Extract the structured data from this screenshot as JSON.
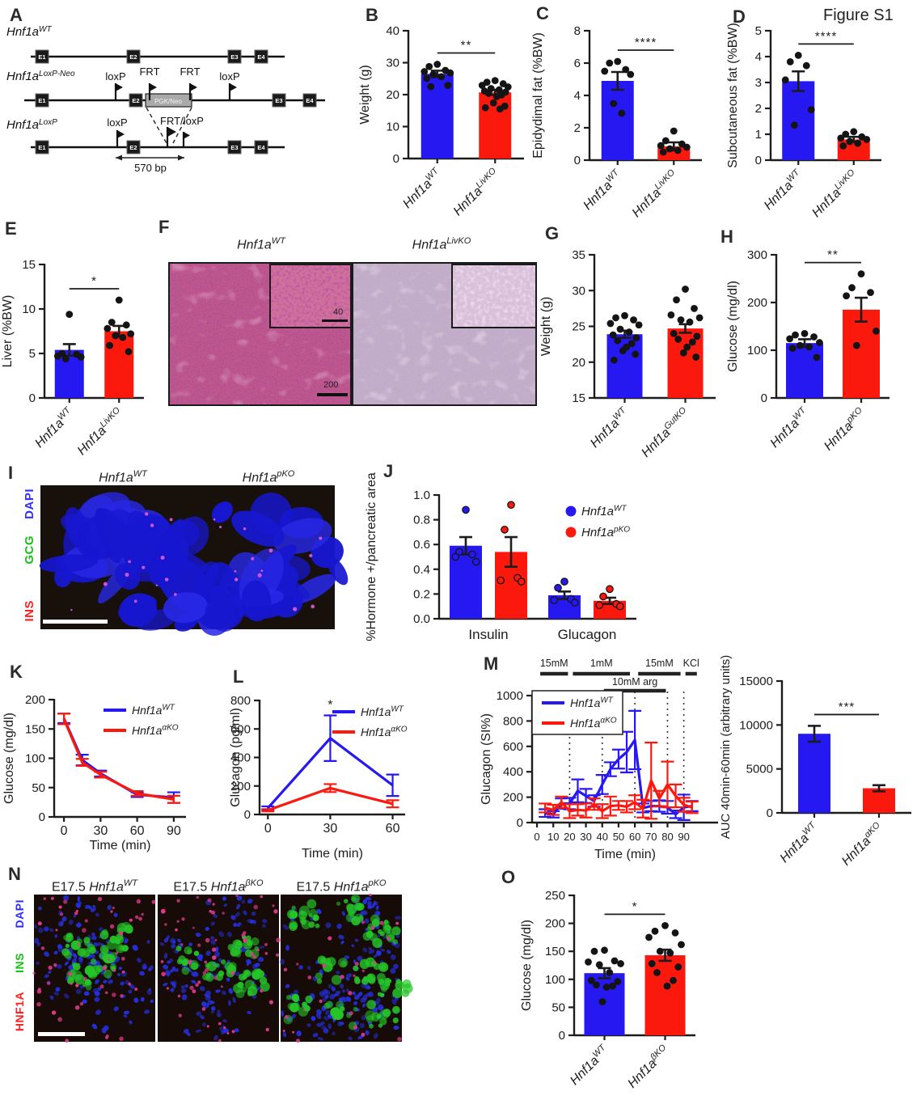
{
  "figure_label": "Figure S1",
  "colors": {
    "wt_blue": "#2618f0",
    "ko_red": "#fb190e",
    "axis": "#1c1c1c",
    "dapi_blue": "#2f2fff",
    "gcg_green": "#12c412",
    "ins_red": "#ff2020",
    "hnf1a_red": "#ff2020",
    "ins_green": "#12c412"
  },
  "panel_letters": {
    "A": "A",
    "B": "B",
    "C": "C",
    "D": "D",
    "E": "E",
    "F": "F",
    "G": "G",
    "H": "H",
    "I": "I",
    "J": "J",
    "K": "K",
    "L": "L",
    "M": "M",
    "N": "N",
    "O": "O"
  },
  "panelA": {
    "alleles": [
      {
        "base": "Hnf1a",
        "sup": "WT"
      },
      {
        "base": "Hnf1a",
        "sup": "LoxP-Neo"
      },
      {
        "base": "Hnf1a",
        "sup": "LoxP"
      }
    ],
    "exons": [
      "E1",
      "E2",
      "E3",
      "E4"
    ],
    "loxp": "loxP",
    "frt": "FRT",
    "cassette": "PGK/Neo",
    "frt_loxp": "FRT/loxP",
    "fragment": "570 bp"
  },
  "panelF": {
    "titles": [
      {
        "base": "Hnf1a",
        "sup": "WT"
      },
      {
        "base": "Hnf1a",
        "sup": "LivKO"
      }
    ],
    "scalebar_main": "200",
    "scalebar_inset": "40"
  },
  "panelI": {
    "titles": [
      {
        "base": "Hnf1a",
        "sup": "WT"
      },
      {
        "base": "Hnf1a",
        "sup": "pKO"
      }
    ],
    "channels": [
      {
        "name": "DAPI",
        "color": "#2f2fff"
      },
      {
        "name": "GCG",
        "color": "#12c412"
      },
      {
        "name": "INS",
        "color": "#ff2020"
      }
    ]
  },
  "panelN": {
    "titles": [
      {
        "prefix": "E17.5 ",
        "base": "Hnf1a",
        "sup": "WT"
      },
      {
        "prefix": "E17.5 ",
        "base": "Hnf1a",
        "sup": "βKO"
      },
      {
        "prefix": "E17.5 ",
        "base": "Hnf1a",
        "sup": "pKO"
      }
    ],
    "channels": [
      {
        "name": "DAPI",
        "color": "#2f2fff"
      },
      {
        "name": "INS",
        "color": "#12c412"
      },
      {
        "name": "HNF1A",
        "color": "#ff2020"
      }
    ]
  },
  "chart_data": [
    {
      "id": "B",
      "type": "bar",
      "ylabel": "Weight (g)",
      "ylim": [
        0,
        40
      ],
      "yticks": [
        0,
        10,
        20,
        30,
        40
      ],
      "categories": [
        {
          "base": "Hnf1a",
          "sup": "WT"
        },
        {
          "base": "Hnf1a",
          "sup": "LivKO"
        }
      ],
      "series": [
        {
          "color": "wt_blue",
          "mean": 26.5,
          "sem": 1.0,
          "points": [
            29.5,
            28.8,
            27.6,
            27.2,
            26.8,
            26.3,
            25.6,
            25.1,
            22.9,
            22.5
          ]
        },
        {
          "color": "ko_red",
          "mean": 20.7,
          "sem": 0.8,
          "points": [
            24.4,
            23.9,
            23.4,
            22.9,
            22.4,
            21.9,
            21.5,
            21.1,
            20.8,
            20.4,
            19.9,
            19.4,
            17.4,
            16.4,
            15.9,
            15.5
          ]
        }
      ],
      "sig": "**"
    },
    {
      "id": "C",
      "type": "bar",
      "ylabel": "Epidydimal fat (%BW)",
      "ylim": [
        0,
        8
      ],
      "yticks": [
        0,
        2,
        4,
        6,
        8
      ],
      "categories": [
        {
          "base": "Hnf1a",
          "sup": "WT"
        },
        {
          "base": "Hnf1a",
          "sup": "LivKO"
        }
      ],
      "series": [
        {
          "color": "wt_blue",
          "mean": 4.9,
          "sem": 0.55,
          "points": [
            6.1,
            6.0,
            5.6,
            5.5,
            5.3,
            3.5,
            2.9
          ]
        },
        {
          "color": "ko_red",
          "mean": 0.85,
          "sem": 0.25,
          "points": [
            1.8,
            1.2,
            1.0,
            0.9,
            0.8,
            0.7,
            0.6,
            0.5
          ]
        }
      ],
      "sig": "****"
    },
    {
      "id": "D",
      "type": "bar",
      "ylabel": "Subcutaneous fat (%BW)",
      "ylim": [
        0,
        5
      ],
      "yticks": [
        0,
        1,
        2,
        3,
        4,
        5
      ],
      "categories": [
        {
          "base": "Hnf1a",
          "sup": "WT"
        },
        {
          "base": "Hnf1a",
          "sup": "LivKO"
        }
      ],
      "series": [
        {
          "color": "wt_blue",
          "mean": 3.05,
          "sem": 0.38,
          "points": [
            4.05,
            3.8,
            3.65,
            3.1,
            1.95,
            1.35
          ]
        },
        {
          "color": "ko_red",
          "mean": 0.8,
          "sem": 0.1,
          "points": [
            1.1,
            1.0,
            0.9,
            0.85,
            0.8,
            0.72,
            0.65,
            0.55
          ]
        }
      ],
      "sig": "****"
    },
    {
      "id": "E",
      "type": "bar",
      "ylabel": "Liver (%BW)",
      "ylim": [
        0,
        15
      ],
      "yticks": [
        0,
        5,
        10,
        15
      ],
      "categories": [
        {
          "base": "Hnf1a",
          "sup": "WT"
        },
        {
          "base": "Hnf1a",
          "sup": "LivKO"
        }
      ],
      "series": [
        {
          "color": "wt_blue",
          "mean": 5.4,
          "sem": 0.65,
          "points": [
            9.4,
            5.0,
            4.9,
            4.7,
            4.6,
            4.4
          ]
        },
        {
          "color": "ko_red",
          "mean": 7.5,
          "sem": 0.6,
          "points": [
            11.0,
            8.5,
            8.2,
            7.8,
            7.2,
            7.0,
            6.8,
            5.9,
            5.2
          ]
        }
      ],
      "sig": "*"
    },
    {
      "id": "G",
      "type": "bar",
      "ylabel": "Weight (g)",
      "ylim": [
        15,
        35
      ],
      "yticks": [
        15,
        20,
        25,
        30,
        35
      ],
      "categories": [
        {
          "base": "Hnf1a",
          "sup": "WT"
        },
        {
          "base": "Hnf1a",
          "sup": "GutKO"
        }
      ],
      "series": [
        {
          "color": "wt_blue",
          "mean": 23.9,
          "sem": 0.5,
          "points": [
            26.5,
            26.2,
            25.9,
            25.4,
            25.2,
            24.6,
            24.2,
            23.8,
            23.4,
            23.0,
            22.6,
            22.1,
            21.6,
            21.1,
            20.3
          ]
        },
        {
          "color": "ko_red",
          "mean": 24.7,
          "sem": 0.6,
          "points": [
            30.2,
            28.7,
            27.5,
            26.6,
            26.2,
            25.9,
            25.6,
            24.0,
            23.6,
            23.2,
            22.8,
            22.1,
            21.3,
            20.7
          ]
        }
      ]
    },
    {
      "id": "H",
      "type": "bar",
      "ylabel": "Glucose (mg/dl)",
      "ylim": [
        0,
        300
      ],
      "yticks": [
        0,
        100,
        200,
        300
      ],
      "categories": [
        {
          "base": "Hnf1a",
          "sup": "WT"
        },
        {
          "base": "Hnf1a",
          "sup": "pKO"
        }
      ],
      "series": [
        {
          "color": "wt_blue",
          "mean": 115,
          "sem": 8,
          "points": [
            135,
            132,
            128,
            124,
            116,
            110,
            107,
            104,
            85
          ]
        },
        {
          "color": "ko_red",
          "mean": 185,
          "sem": 25,
          "points": [
            260,
            231,
            221,
            214,
            140,
            110
          ]
        }
      ],
      "sig": "**"
    },
    {
      "id": "J",
      "type": "grouped-bar",
      "ylabel": "%Hormone +/pancreatic area",
      "ylim": [
        0,
        1.0
      ],
      "yticks": [
        0,
        0.2,
        0.4,
        0.6,
        0.8,
        1.0
      ],
      "ytick_labels": [
        "0.0",
        "0.2",
        "0.4",
        "0.6",
        "0.8",
        "1.0"
      ],
      "groups": [
        "Insulin",
        "Glucagon"
      ],
      "series": [
        {
          "name": {
            "base": "Hnf1a",
            "sup": "WT"
          },
          "color": "wt_blue",
          "means": [
            0.59,
            0.19
          ],
          "sems": [
            0.07,
            0.03
          ],
          "points": [
            [
              0.88,
              0.54,
              0.52,
              0.5,
              0.46
            ],
            [
              0.3,
              0.25,
              0.16,
              0.15,
              0.13
            ]
          ]
        },
        {
          "name": {
            "base": "Hnf1a",
            "sup": "pKO"
          },
          "color": "ko_red",
          "means": [
            0.54,
            0.145
          ],
          "sems": [
            0.12,
            0.025
          ],
          "points": [
            [
              0.92,
              0.72,
              0.33,
              0.31,
              0.3
            ],
            [
              0.24,
              0.18,
              0.12,
              0.11,
              0.1
            ]
          ]
        }
      ]
    },
    {
      "id": "K",
      "type": "line",
      "ylabel": "Glucose (mg/dl)",
      "xlabel": "Time (min)",
      "ylim": [
        0,
        200
      ],
      "yticks": [
        0,
        50,
        100,
        150,
        200
      ],
      "xlim": [
        -8,
        100
      ],
      "xticks": [
        0,
        30,
        60,
        90
      ],
      "x": [
        0,
        15,
        30,
        60,
        90
      ],
      "series": [
        {
          "name": {
            "base": "Hnf1a",
            "sup": "WT"
          },
          "color": "wt_blue",
          "y": [
            168,
            97,
            74,
            38,
            33
          ],
          "err": [
            8,
            9,
            5,
            4,
            9
          ]
        },
        {
          "name": {
            "base": "Hnf1a",
            "sup": "αKO"
          },
          "color": "ko_red",
          "y": [
            167,
            93,
            72,
            40,
            30
          ],
          "err": [
            9,
            6,
            5,
            4,
            6
          ]
        }
      ]
    },
    {
      "id": "L",
      "type": "line",
      "ylabel": "Glucagon (pg/ml)",
      "xlabel": "Time (min)",
      "ylim": [
        0,
        800
      ],
      "yticks": [
        0,
        200,
        400,
        600,
        800
      ],
      "xlim": [
        -4,
        66
      ],
      "xticks": [
        0,
        30,
        60
      ],
      "x": [
        0,
        30,
        60
      ],
      "series": [
        {
          "name": {
            "base": "Hnf1a",
            "sup": "WT"
          },
          "color": "wt_blue",
          "y": [
            45,
            535,
            205
          ],
          "err": [
            12,
            160,
            75
          ]
        },
        {
          "name": {
            "base": "Hnf1a",
            "sup": "αKO"
          },
          "color": "ko_red",
          "y": [
            30,
            185,
            75
          ],
          "err": [
            8,
            28,
            25
          ]
        }
      ],
      "point_sig": {
        "x": 30,
        "label": "*"
      }
    },
    {
      "id": "M",
      "type": "line",
      "ylabel": "Glucagon (SI%)",
      "xlabel": "Time (min)",
      "ylim": [
        0,
        1000
      ],
      "yticks": [
        0,
        200,
        400,
        600,
        800,
        1000
      ],
      "xlim": [
        -3,
        111
      ],
      "xticks": [
        0,
        10,
        20,
        30,
        40,
        50,
        60,
        70,
        80,
        90
      ],
      "x": [
        5,
        10,
        15,
        20,
        25,
        30,
        35,
        40,
        45,
        50,
        55,
        60,
        65,
        70,
        75,
        80,
        85,
        90,
        95
      ],
      "series": [
        {
          "name": {
            "base": "Hnf1a",
            "sup": "WT"
          },
          "color": "wt_blue",
          "y": [
            75,
            65,
            150,
            150,
            250,
            210,
            170,
            300,
            420,
            500,
            555,
            650,
            115,
            130,
            130,
            120,
            65,
            120,
            130
          ],
          "err": [
            30,
            25,
            40,
            45,
            90,
            55,
            45,
            75,
            55,
            75,
            160,
            230,
            35,
            40,
            45,
            50,
            30,
            100,
            40
          ]
        },
        {
          "name": {
            "base": "Hnf1a",
            "sup": "αKO"
          },
          "color": "ko_red",
          "y": [
            115,
            100,
            160,
            90,
            100,
            95,
            145,
            90,
            130,
            135,
            125,
            160,
            110,
            330,
            190,
            300,
            210,
            140,
            120
          ],
          "err": [
            35,
            40,
            45,
            55,
            45,
            55,
            45,
            55,
            75,
            35,
            45,
            55,
            70,
            300,
            60,
            180,
            90,
            55,
            45
          ]
        }
      ],
      "vlines": [
        20,
        40,
        60,
        80,
        90
      ],
      "top_bars": [
        {
          "label": "15mM",
          "from": 2,
          "to": 19,
          "row": 0
        },
        {
          "label": "1mM",
          "from": 22,
          "to": 57,
          "row": 0
        },
        {
          "label": "15mM",
          "from": 62,
          "to": 88,
          "row": 0
        },
        {
          "label": "KCl",
          "from": 91,
          "to": 98,
          "row": 0
        },
        {
          "label": "10mM arg",
          "from": 41,
          "to": 79,
          "row": 1
        }
      ],
      "legend_boxed": true
    },
    {
      "id": "M_AUC",
      "type": "bar",
      "ylabel": "AUC 40min-60min (arbitrary units)",
      "ylim": [
        0,
        15000
      ],
      "yticks": [
        0,
        5000,
        10000,
        15000
      ],
      "categories": [
        {
          "base": "Hnf1a",
          "sup": "WT"
        },
        {
          "base": "Hnf1a",
          "sup": "αKO"
        }
      ],
      "series": [
        {
          "color": "wt_blue",
          "mean": 9000,
          "sem": 900,
          "points": []
        },
        {
          "color": "ko_red",
          "mean": 2800,
          "sem": 350,
          "points": []
        }
      ],
      "sig": "***"
    },
    {
      "id": "O",
      "type": "bar",
      "ylabel": "Glucose (mg/dl)",
      "ylim": [
        0,
        250
      ],
      "yticks": [
        0,
        50,
        100,
        150,
        200,
        250
      ],
      "categories": [
        {
          "base": "Hnf1a",
          "sup": "WT"
        },
        {
          "base": "Hnf1a",
          "sup": "βKO"
        }
      ],
      "series": [
        {
          "color": "wt_blue",
          "mean": 111,
          "sem": 9,
          "points": [
            152,
            150,
            133,
            131,
            128,
            126,
            112,
            98,
            96,
            90,
            88,
            86,
            60
          ]
        },
        {
          "color": "ko_red",
          "mean": 143,
          "sem": 10,
          "points": [
            196,
            186,
            183,
            175,
            162,
            150,
            147,
            128,
            122,
            112,
            98,
            88
          ]
        }
      ],
      "sig": "*"
    }
  ]
}
